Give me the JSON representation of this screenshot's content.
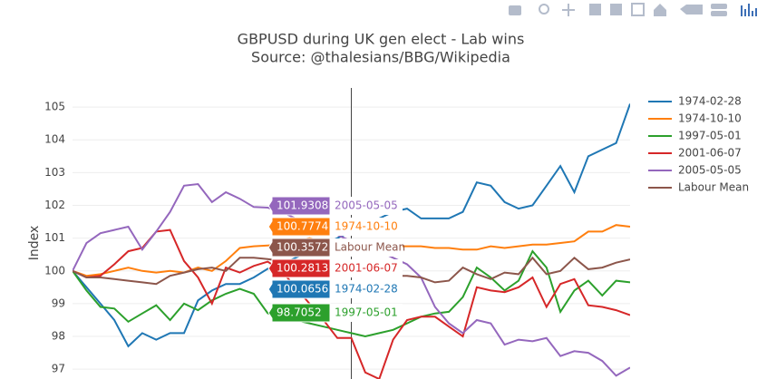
{
  "chart_data": {
    "type": "line",
    "title": "GBPUSD during UK gen elect - Lab wins",
    "subtitle": "Source: @thalesians/BBG/Wikipedia",
    "y_label": "Index",
    "x": [
      -20,
      -19,
      -18,
      -17,
      -16,
      -15,
      -14,
      -13,
      -12,
      -11,
      -10,
      -9,
      -8,
      -7,
      -6,
      -5,
      -4,
      -3,
      -2,
      -1,
      0,
      1,
      2,
      3,
      4,
      5,
      6,
      7,
      8,
      9,
      10,
      11,
      12,
      13,
      14,
      15,
      16,
      17,
      18,
      19,
      20
    ],
    "xlim": [
      -20,
      20
    ],
    "vline_x": 0,
    "ylim": [
      96.7,
      105.5
    ],
    "yticks": [
      97,
      98,
      99,
      100,
      101,
      102,
      103,
      104,
      105
    ],
    "grid": true,
    "legend": "right",
    "series": [
      {
        "name": "1974-02-28",
        "color": "#1f77b4",
        "values": [
          100,
          99.5,
          99.0,
          98.5,
          97.7,
          98.1,
          97.9,
          98.1,
          98.1,
          99.1,
          99.4,
          99.6,
          99.6,
          99.8,
          100.0656,
          100.2,
          100.4,
          100.6,
          100.8,
          101.0,
          101.2,
          101.4,
          101.6,
          101.8,
          101.9,
          101.6,
          101.6,
          101.6,
          101.8,
          102.7,
          102.6,
          102.1,
          101.9,
          102.0,
          102.6,
          103.2,
          102.4,
          103.5,
          103.7,
          103.9,
          105.1
        ]
      },
      {
        "name": "1974-10-10",
        "color": "#ff7f0e",
        "values": [
          100,
          99.85,
          99.9,
          100.0,
          100.1,
          100.0,
          99.95,
          100.0,
          99.95,
          100.1,
          100.0,
          100.3,
          100.7,
          100.75,
          100.7774,
          100.8,
          100.9,
          101.0,
          100.9,
          100.8,
          100.8,
          100.85,
          100.8,
          100.75,
          100.75,
          100.75,
          100.7,
          100.7,
          100.65,
          100.65,
          100.75,
          100.7,
          100.75,
          100.8,
          100.8,
          100.85,
          100.9,
          101.2,
          101.2,
          101.4,
          101.35
        ]
      },
      {
        "name": "1997-05-01",
        "color": "#2ca02c",
        "values": [
          100,
          99.4,
          98.9,
          98.85,
          98.45,
          98.7,
          98.95,
          98.5,
          99.0,
          98.8,
          99.1,
          99.3,
          99.45,
          99.3,
          98.7052,
          98.6,
          98.5,
          98.4,
          98.3,
          98.2,
          98.1,
          98.0,
          98.1,
          98.2,
          98.4,
          98.6,
          98.7,
          98.75,
          99.2,
          100.1,
          99.8,
          99.4,
          99.7,
          100.6,
          100.1,
          98.75,
          99.4,
          99.7,
          99.25,
          99.7,
          99.65
        ]
      },
      {
        "name": "2001-06-07",
        "color": "#d62728",
        "values": [
          100,
          99.8,
          99.85,
          100.2,
          100.6,
          100.7,
          101.2,
          101.25,
          100.3,
          99.8,
          99.0,
          100.1,
          99.95,
          100.15,
          100.2813,
          100.0,
          99.5,
          99.0,
          98.5,
          97.95,
          97.95,
          96.9,
          96.7,
          97.9,
          98.5,
          98.6,
          98.6,
          98.3,
          98.0,
          99.5,
          99.4,
          99.35,
          99.5,
          99.8,
          98.9,
          99.6,
          99.75,
          98.95,
          98.9,
          98.8,
          98.65
        ]
      },
      {
        "name": "2005-05-05",
        "color": "#9467bd",
        "values": [
          100,
          100.85,
          101.15,
          101.25,
          101.35,
          100.65,
          101.2,
          101.8,
          102.6,
          102.65,
          102.1,
          102.4,
          102.2,
          101.95,
          101.9308,
          101.8,
          101.6,
          101.4,
          101.3,
          101.1,
          100.9,
          100.8,
          100.6,
          100.4,
          100.2,
          99.8,
          98.9,
          98.4,
          98.1,
          98.5,
          98.4,
          97.75,
          97.9,
          97.85,
          97.95,
          97.4,
          97.55,
          97.5,
          97.25,
          96.8,
          97.05
        ]
      },
      {
        "name": "Labour Mean",
        "color": "#8c564b",
        "values": [
          100,
          99.8,
          99.8,
          99.75,
          99.7,
          99.65,
          99.6,
          99.85,
          99.95,
          100.05,
          100.1,
          100.0,
          100.4,
          100.4,
          100.3572,
          100.3,
          100.2,
          100.1,
          100.0,
          99.9,
          99.9,
          99.85,
          99.85,
          99.85,
          99.85,
          99.8,
          99.65,
          99.7,
          100.1,
          99.9,
          99.75,
          99.95,
          99.9,
          100.4,
          99.9,
          100.0,
          100.4,
          100.05,
          100.1,
          100.25,
          100.35
        ]
      }
    ]
  }
}
